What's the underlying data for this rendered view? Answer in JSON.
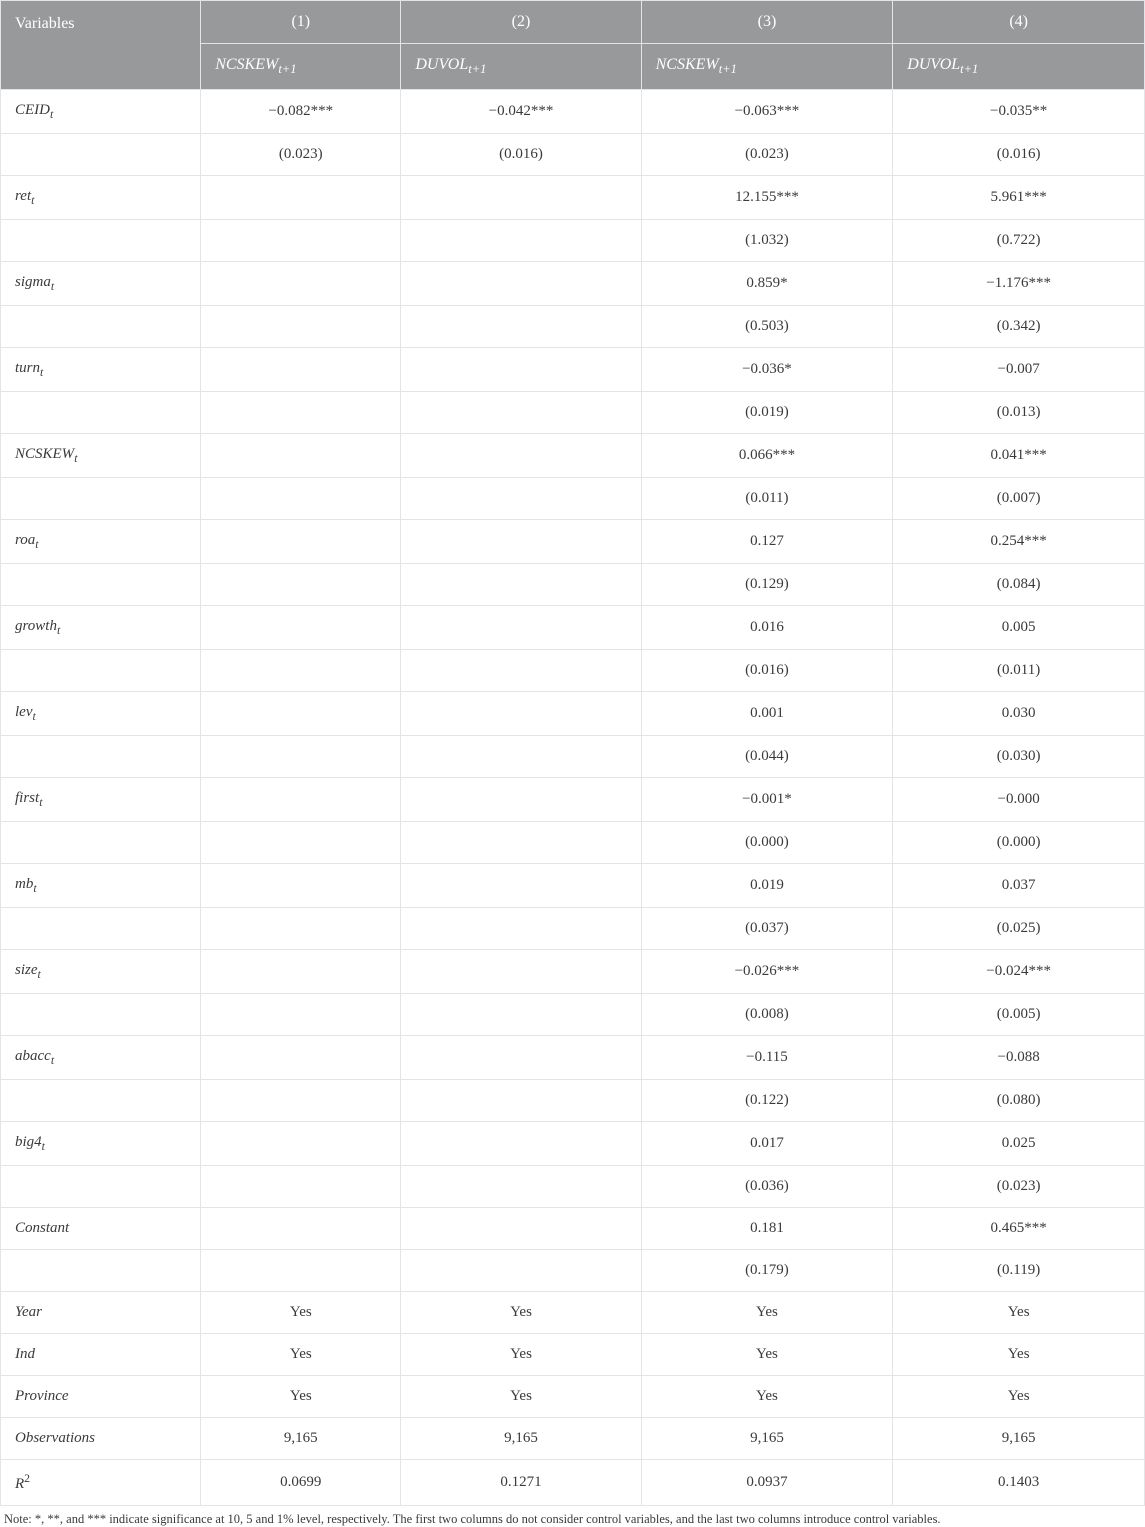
{
  "colors": {
    "header_bg": "#98999b",
    "header_fg": "#ffffff",
    "border": "#e2e4e7",
    "text": "#3a3a3a",
    "background": "#ffffff"
  },
  "typography": {
    "font_family": "Times New Roman",
    "body_fontsize_pt": 11,
    "header_fontsize_pt": 12,
    "note_fontsize_pt": 9
  },
  "table": {
    "var_header": "Variables",
    "col_numbers": [
      "(1)",
      "(2)",
      "(3)",
      "(4)"
    ],
    "dep_vars": [
      {
        "base": "NCSKEW",
        "sub": "t+1"
      },
      {
        "base": "DUVOL",
        "sub": "t+1"
      },
      {
        "base": "NCSKEW",
        "sub": "t+1"
      },
      {
        "base": "DUVOL",
        "sub": "t+1"
      }
    ],
    "col_widths_pct": [
      17.5,
      17.5,
      21,
      22,
      22
    ],
    "rows": [
      {
        "var": {
          "base": "CEID",
          "sub": "t"
        },
        "vals": [
          "−0.082***",
          "−0.042***",
          "−0.063***",
          "−0.035**"
        ]
      },
      {
        "var": null,
        "vals": [
          "(0.023)",
          "(0.016)",
          "(0.023)",
          "(0.016)"
        ]
      },
      {
        "var": {
          "base": "ret",
          "sub": "t"
        },
        "vals": [
          "",
          "",
          "12.155***",
          "5.961***"
        ]
      },
      {
        "var": null,
        "vals": [
          "",
          "",
          "(1.032)",
          "(0.722)"
        ]
      },
      {
        "var": {
          "base": "sigma",
          "sub": "t"
        },
        "vals": [
          "",
          "",
          "0.859*",
          "−1.176***"
        ]
      },
      {
        "var": null,
        "vals": [
          "",
          "",
          "(0.503)",
          "(0.342)"
        ]
      },
      {
        "var": {
          "base": "turn",
          "sub": "t"
        },
        "vals": [
          "",
          "",
          "−0.036*",
          "−0.007"
        ]
      },
      {
        "var": null,
        "vals": [
          "",
          "",
          "(0.019)",
          "(0.013)"
        ]
      },
      {
        "var": {
          "base": "NCSKEW",
          "sub": "t"
        },
        "vals": [
          "",
          "",
          "0.066***",
          "0.041***"
        ]
      },
      {
        "var": null,
        "vals": [
          "",
          "",
          "(0.011)",
          "(0.007)"
        ]
      },
      {
        "var": {
          "base": "roa",
          "sub": "t"
        },
        "vals": [
          "",
          "",
          "0.127",
          "0.254***"
        ]
      },
      {
        "var": null,
        "vals": [
          "",
          "",
          "(0.129)",
          "(0.084)"
        ]
      },
      {
        "var": {
          "base": "growth",
          "sub": "t"
        },
        "vals": [
          "",
          "",
          "0.016",
          "0.005"
        ]
      },
      {
        "var": null,
        "vals": [
          "",
          "",
          "(0.016)",
          "(0.011)"
        ]
      },
      {
        "var": {
          "base": "lev",
          "sub": "t"
        },
        "vals": [
          "",
          "",
          "0.001",
          "0.030"
        ]
      },
      {
        "var": null,
        "vals": [
          "",
          "",
          "(0.044)",
          "(0.030)"
        ]
      },
      {
        "var": {
          "base": "first",
          "sub": "t"
        },
        "vals": [
          "",
          "",
          "−0.001*",
          "−0.000"
        ]
      },
      {
        "var": null,
        "vals": [
          "",
          "",
          "(0.000)",
          "(0.000)"
        ]
      },
      {
        "var": {
          "base": "mb",
          "sub": "t"
        },
        "vals": [
          "",
          "",
          "0.019",
          "0.037"
        ]
      },
      {
        "var": null,
        "vals": [
          "",
          "",
          "(0.037)",
          "(0.025)"
        ]
      },
      {
        "var": {
          "base": "size",
          "sub": "t"
        },
        "vals": [
          "",
          "",
          "−0.026***",
          "−0.024***"
        ]
      },
      {
        "var": null,
        "vals": [
          "",
          "",
          "(0.008)",
          "(0.005)"
        ]
      },
      {
        "var": {
          "base": "abacc",
          "sub": "t"
        },
        "vals": [
          "",
          "",
          "−0.115",
          "−0.088"
        ]
      },
      {
        "var": null,
        "vals": [
          "",
          "",
          "(0.122)",
          "(0.080)"
        ]
      },
      {
        "var": {
          "base": "big4",
          "sub": "t"
        },
        "vals": [
          "",
          "",
          "0.017",
          "0.025"
        ]
      },
      {
        "var": null,
        "vals": [
          "",
          "",
          "(0.036)",
          "(0.023)"
        ]
      },
      {
        "var": {
          "base": "Constant",
          "sub": ""
        },
        "vals": [
          "",
          "",
          "0.181",
          "0.465***"
        ]
      },
      {
        "var": null,
        "vals": [
          "",
          "",
          "(0.179)",
          "(0.119)"
        ]
      },
      {
        "var": {
          "base": "Year",
          "sub": ""
        },
        "vals": [
          "Yes",
          "Yes",
          "Yes",
          "Yes"
        ]
      },
      {
        "var": {
          "base": "Ind",
          "sub": ""
        },
        "vals": [
          "Yes",
          "Yes",
          "Yes",
          "Yes"
        ]
      },
      {
        "var": {
          "base": "Province",
          "sub": ""
        },
        "vals": [
          "Yes",
          "Yes",
          "Yes",
          "Yes"
        ]
      },
      {
        "var": {
          "base": "Observations",
          "sub": ""
        },
        "vals": [
          "9,165",
          "9,165",
          "9,165",
          "9,165"
        ]
      },
      {
        "var": {
          "base": "R",
          "sub": "",
          "sup": "2"
        },
        "vals": [
          "0.0699",
          "0.1271",
          "0.0937",
          "0.1403"
        ]
      }
    ]
  },
  "note": "Note: *, **, and *** indicate significance at 10, 5 and 1% level, respectively. The first two columns do not consider control variables, and the last two columns introduce control variables."
}
